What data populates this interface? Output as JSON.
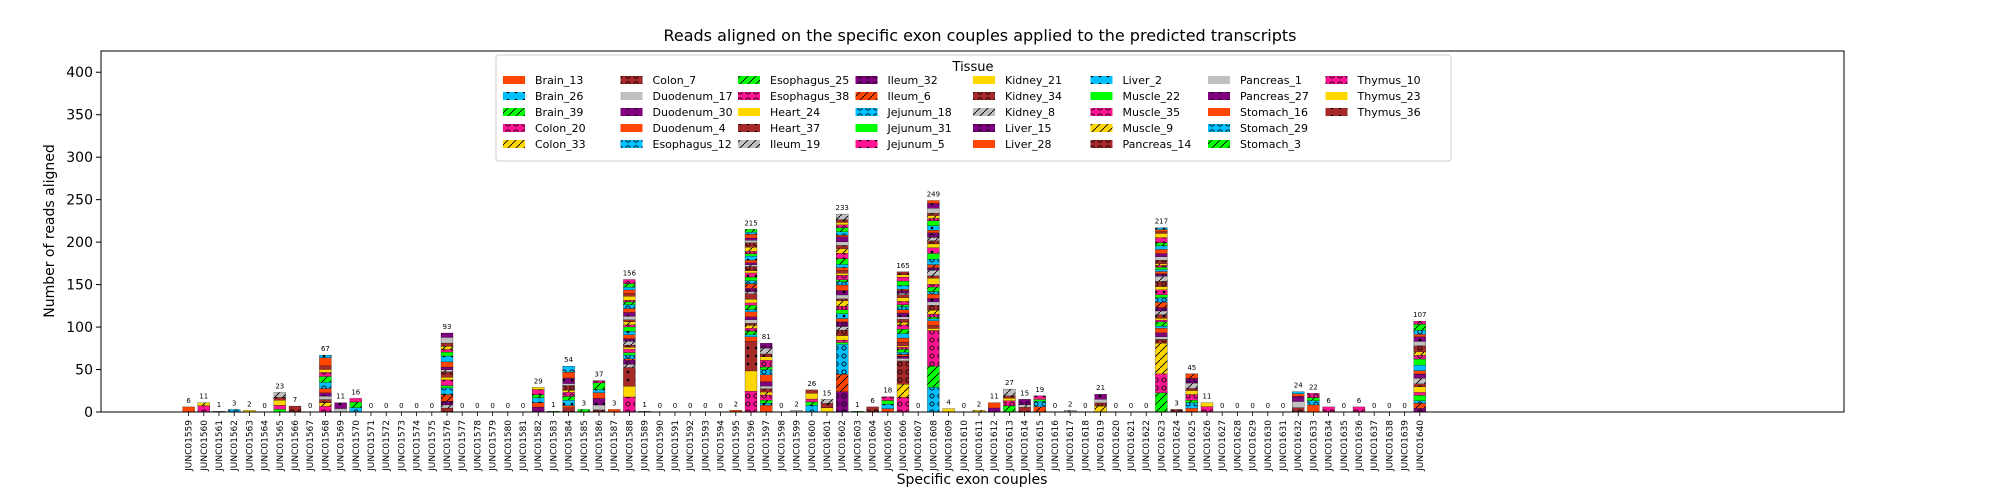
{
  "chart_data": {
    "type": "bar",
    "stacked": true,
    "title": "Reads aligned on the specific exon couples applied to the predicted transcripts",
    "xlabel": "Specific exon couples",
    "ylabel": "Number of reads aligned",
    "ylim": [
      0,
      425
    ],
    "yticks": [
      0,
      50,
      100,
      150,
      200,
      250,
      300,
      350,
      400
    ],
    "grid": false,
    "legend": {
      "title": "Tissue",
      "placement": "top-center",
      "columns": 8
    },
    "categories": [
      "JUNC01559",
      "JUNC01560",
      "JUNC01561",
      "JUNC01562",
      "JUNC01563",
      "JUNC01564",
      "JUNC01565",
      "JUNC01566",
      "JUNC01567",
      "JUNC01568",
      "JUNC01569",
      "JUNC01570",
      "JUNC01571",
      "JUNC01572",
      "JUNC01573",
      "JUNC01574",
      "JUNC01575",
      "JUNC01576",
      "JUNC01577",
      "JUNC01578",
      "JUNC01579",
      "JUNC01580",
      "JUNC01581",
      "JUNC01582",
      "JUNC01583",
      "JUNC01584",
      "JUNC01585",
      "JUNC01586",
      "JUNC01587",
      "JUNC01588",
      "JUNC01589",
      "JUNC01590",
      "JUNC01591",
      "JUNC01592",
      "JUNC01593",
      "JUNC01594",
      "JUNC01595",
      "JUNC01596",
      "JUNC01597",
      "JUNC01598",
      "JUNC01599",
      "JUNC01600",
      "JUNC01601",
      "JUNC01602",
      "JUNC01603",
      "JUNC01604",
      "JUNC01605",
      "JUNC01606",
      "JUNC01607",
      "JUNC01608",
      "JUNC01609",
      "JUNC01610",
      "JUNC01611",
      "JUNC01612",
      "JUNC01613",
      "JUNC01614",
      "JUNC01615",
      "JUNC01616",
      "JUNC01617",
      "JUNC01618",
      "JUNC01619",
      "JUNC01620",
      "JUNC01621",
      "JUNC01622",
      "JUNC01623",
      "JUNC01624",
      "JUNC01625",
      "JUNC01626",
      "JUNC01627",
      "JUNC01628",
      "JUNC01629",
      "JUNC01630",
      "JUNC01631",
      "JUNC01632",
      "JUNC01633",
      "JUNC01634",
      "JUNC01635",
      "JUNC01636",
      "JUNC01637",
      "JUNC01638",
      "JUNC01639",
      "JUNC01640"
    ],
    "totals": [
      6,
      11,
      1,
      3,
      2,
      0,
      23,
      7,
      0,
      67,
      11,
      16,
      0,
      0,
      0,
      0,
      0,
      93,
      0,
      0,
      0,
      0,
      0,
      29,
      1,
      54,
      3,
      37,
      3,
      156,
      1,
      0,
      0,
      0,
      0,
      0,
      2,
      215,
      81,
      0,
      2,
      26,
      15,
      233,
      1,
      6,
      18,
      165,
      0,
      249,
      4,
      0,
      2,
      11,
      27,
      15,
      19,
      0,
      2,
      0,
      21,
      0,
      0,
      0,
      217,
      3,
      45,
      11,
      0,
      0,
      0,
      0,
      0,
      24,
      22,
      6,
      0,
      6,
      0,
      0,
      0,
      107
    ],
    "series": [
      {
        "name": "Brain_13",
        "color": "#ff4500",
        "hatch": "none"
      },
      {
        "name": "Brain_26",
        "color": "#00bfff",
        "hatch": "dots"
      },
      {
        "name": "Brain_39",
        "color": "#00ff00",
        "hatch": "slash"
      },
      {
        "name": "Colon_20",
        "color": "#ff1493",
        "hatch": "rings"
      },
      {
        "name": "Colon_33",
        "color": "#ffd700",
        "hatch": "slash"
      },
      {
        "name": "Colon_7",
        "color": "#a52a2a",
        "hatch": "rings"
      },
      {
        "name": "Duodenum_17",
        "color": "#c0c0c0",
        "hatch": "none"
      },
      {
        "name": "Duodenum_30",
        "color": "#800080",
        "hatch": "dots"
      },
      {
        "name": "Duodenum_4",
        "color": "#ff4500",
        "hatch": "none"
      },
      {
        "name": "Esophagus_12",
        "color": "#00bfff",
        "hatch": "rings"
      },
      {
        "name": "Esophagus_25",
        "color": "#00ff00",
        "hatch": "slash"
      },
      {
        "name": "Esophagus_38",
        "color": "#ff1493",
        "hatch": "rings"
      },
      {
        "name": "Heart_24",
        "color": "#ffd700",
        "hatch": "none"
      },
      {
        "name": "Heart_37",
        "color": "#a52a2a",
        "hatch": "dots"
      },
      {
        "name": "Ileum_19",
        "color": "#c0c0c0",
        "hatch": "slash"
      },
      {
        "name": "Ileum_32",
        "color": "#800080",
        "hatch": "rings"
      },
      {
        "name": "Ileum_6",
        "color": "#ff4500",
        "hatch": "slash"
      },
      {
        "name": "Jejunum_18",
        "color": "#00bfff",
        "hatch": "rings"
      },
      {
        "name": "Jejunum_31",
        "color": "#00ff00",
        "hatch": "none"
      },
      {
        "name": "Jejunum_5",
        "color": "#ff1493",
        "hatch": "dots"
      },
      {
        "name": "Kidney_21",
        "color": "#ffd700",
        "hatch": "none"
      },
      {
        "name": "Kidney_34",
        "color": "#a52a2a",
        "hatch": "rings"
      },
      {
        "name": "Kidney_8",
        "color": "#c0c0c0",
        "hatch": "slash"
      },
      {
        "name": "Liver_15",
        "color": "#800080",
        "hatch": "rings"
      },
      {
        "name": "Liver_28",
        "color": "#ff4500",
        "hatch": "none"
      },
      {
        "name": "Liver_2",
        "color": "#00bfff",
        "hatch": "dots"
      },
      {
        "name": "Muscle_22",
        "color": "#00ff00",
        "hatch": "none"
      },
      {
        "name": "Muscle_35",
        "color": "#ff1493",
        "hatch": "rings"
      },
      {
        "name": "Muscle_9",
        "color": "#ffd700",
        "hatch": "slash"
      },
      {
        "name": "Pancreas_14",
        "color": "#a52a2a",
        "hatch": "rings"
      },
      {
        "name": "Pancreas_1",
        "color": "#c0c0c0",
        "hatch": "none"
      },
      {
        "name": "Pancreas_27",
        "color": "#800080",
        "hatch": "dots"
      },
      {
        "name": "Stomach_16",
        "color": "#ff4500",
        "hatch": "none"
      },
      {
        "name": "Stomach_29",
        "color": "#00bfff",
        "hatch": "rings"
      },
      {
        "name": "Stomach_3",
        "color": "#00ff00",
        "hatch": "slash"
      },
      {
        "name": "Thymus_10",
        "color": "#ff1493",
        "hatch": "rings"
      },
      {
        "name": "Thymus_23",
        "color": "#ffd700",
        "hatch": "none"
      },
      {
        "name": "Thymus_36",
        "color": "#a52a2a",
        "hatch": "dots"
      }
    ]
  }
}
